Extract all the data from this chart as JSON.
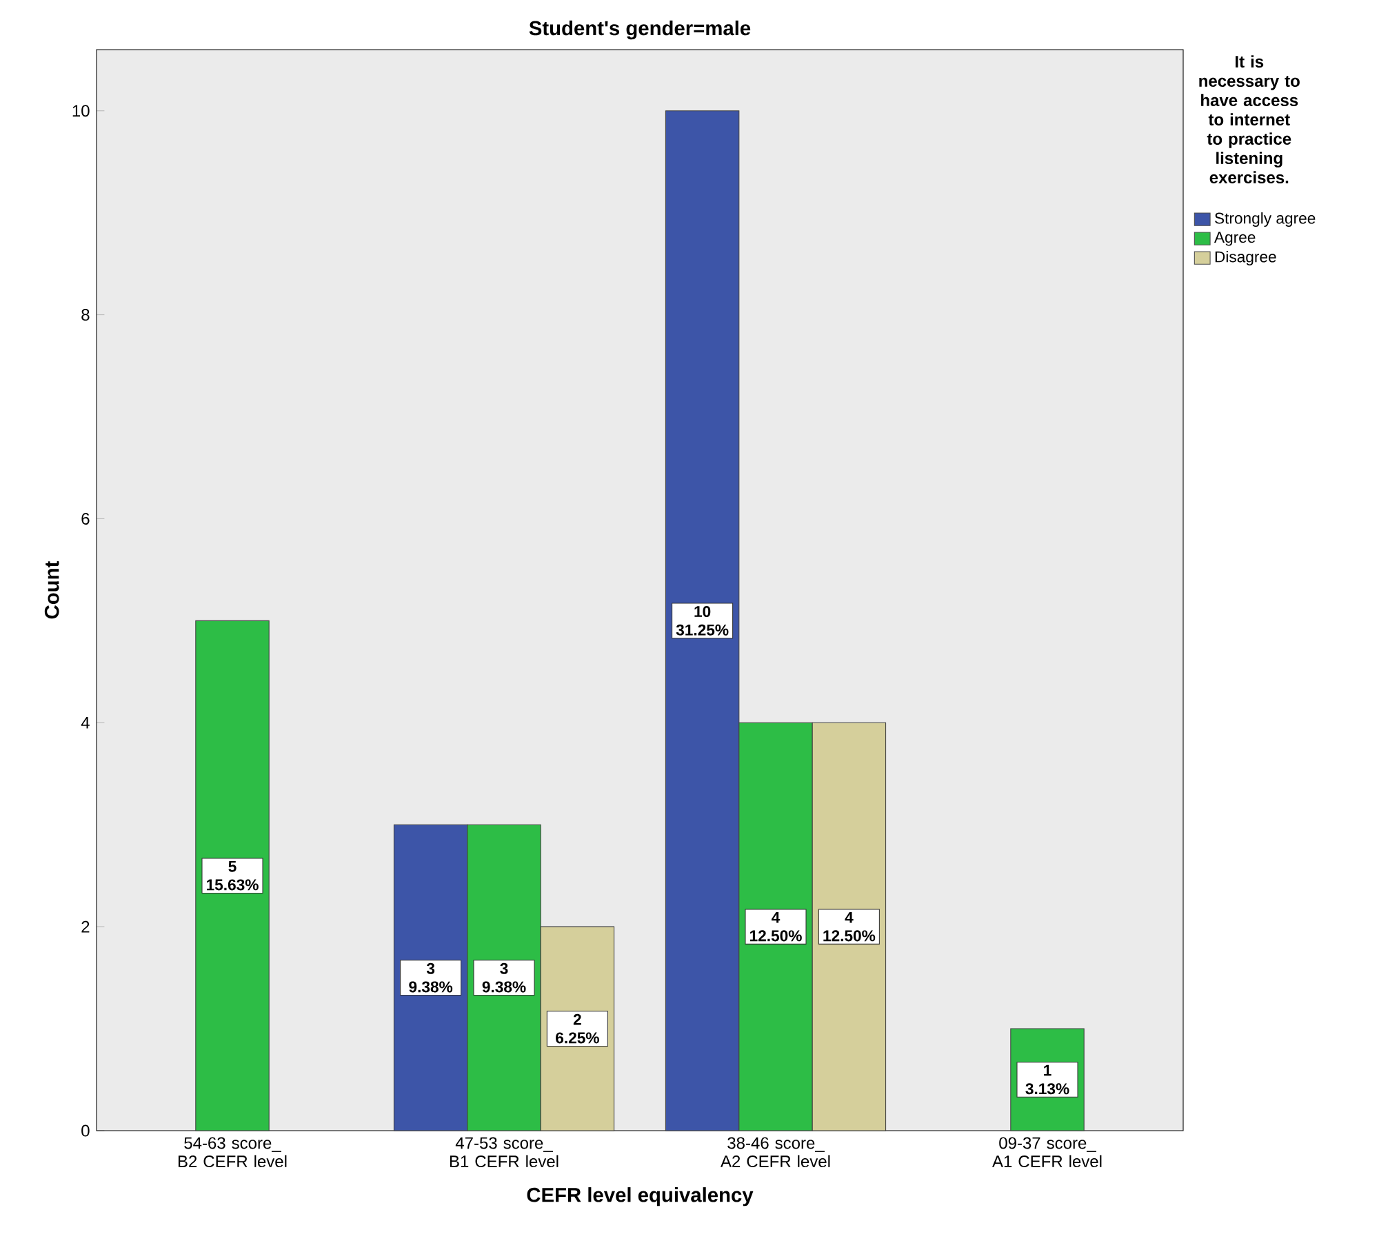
{
  "chart_data": {
    "type": "bar",
    "title": "Student's gender=male",
    "xlabel": "CEFR level equivalency",
    "ylabel": "Count",
    "legend_title": "It is necessary to have access to internet to practice listening exercises.",
    "legend": "right",
    "categories": [
      "54-63 score_ B2 CEFR level",
      "47-53 score_ B1 CEFR level",
      "38-46 score_ A2 CEFR level",
      "09-37 score_ A1 CEFR level"
    ],
    "series": [
      {
        "name": "Strongly agree",
        "color": "#3d55a8",
        "values": [
          null,
          3,
          10,
          null
        ],
        "value_labels": [
          null,
          "3 9.38%",
          "10 31.25%",
          null
        ]
      },
      {
        "name": "Agree",
        "color": "#2dbd46",
        "values": [
          5,
          3,
          4,
          1
        ],
        "value_labels": [
          "5 15.63%",
          "3 9.38%",
          "4 12.50%",
          "1 3.13%"
        ]
      },
      {
        "name": "Disagree",
        "color": "#d5cf9b",
        "values": [
          null,
          2,
          4,
          null
        ],
        "value_labels": [
          null,
          "2 6.25%",
          "4 12.50%",
          null
        ]
      }
    ],
    "ylim": [
      0,
      10.6
    ],
    "yticks": [
      0,
      2,
      4,
      6,
      8,
      10
    ],
    "grid": false
  }
}
